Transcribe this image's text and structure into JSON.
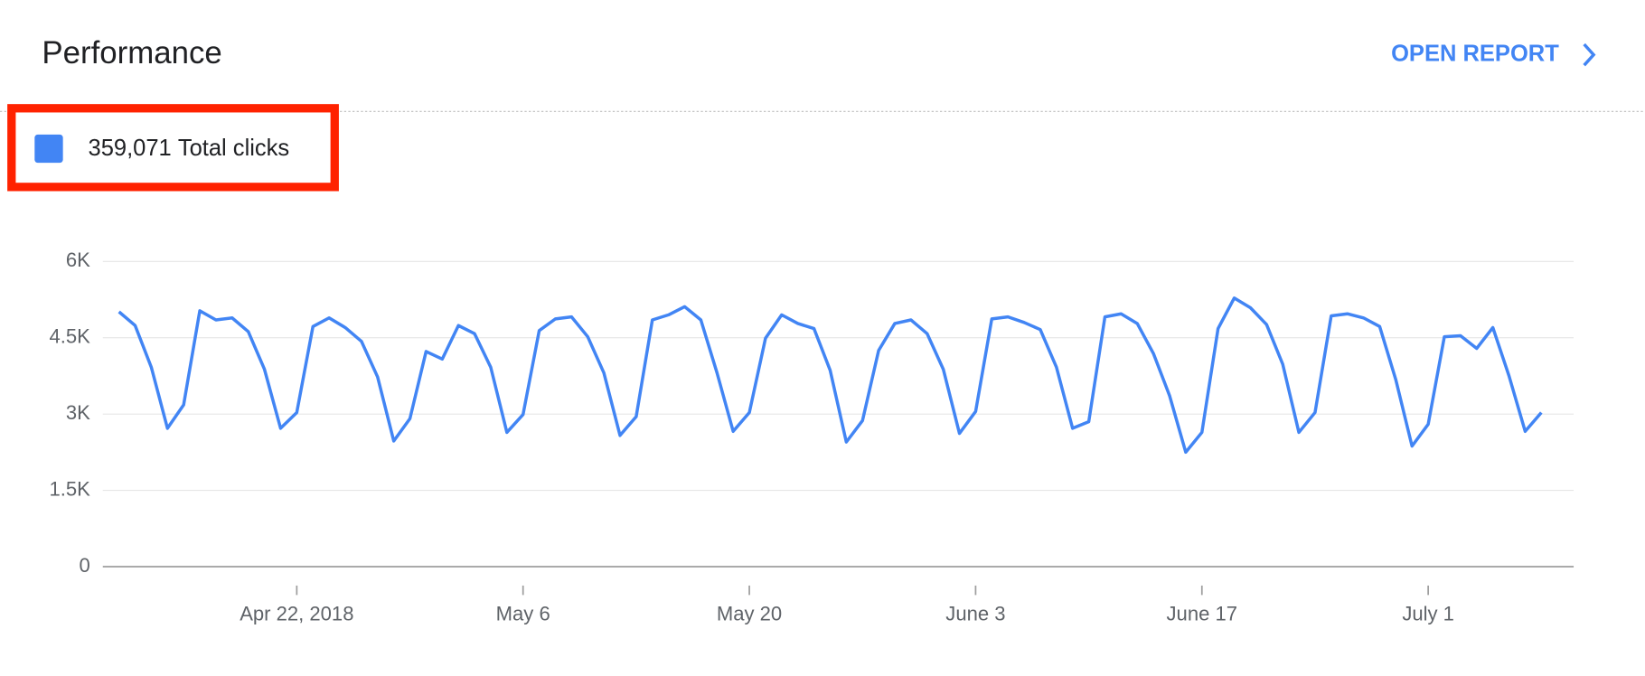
{
  "header": {
    "title": "Performance",
    "link": "OPEN REPORT"
  },
  "chart_data": {
    "type": "line",
    "legend_value": "359,071",
    "x": [
      "2018-04-11",
      "2018-04-12",
      "2018-04-13",
      "2018-04-14",
      "2018-04-15",
      "2018-04-16",
      "2018-04-17",
      "2018-04-18",
      "2018-04-19",
      "2018-04-20",
      "2018-04-21",
      "2018-04-22",
      "2018-04-23",
      "2018-04-24",
      "2018-04-25",
      "2018-04-26",
      "2018-04-27",
      "2018-04-28",
      "2018-04-29",
      "2018-04-30",
      "2018-05-01",
      "2018-05-02",
      "2018-05-03",
      "2018-05-04",
      "2018-05-05",
      "2018-05-06",
      "2018-05-07",
      "2018-05-08",
      "2018-05-09",
      "2018-05-10",
      "2018-05-11",
      "2018-05-12",
      "2018-05-13",
      "2018-05-14",
      "2018-05-15",
      "2018-05-16",
      "2018-05-17",
      "2018-05-18",
      "2018-05-19",
      "2018-05-20",
      "2018-05-21",
      "2018-05-22",
      "2018-05-23",
      "2018-05-24",
      "2018-05-25",
      "2018-05-26",
      "2018-05-27",
      "2018-05-28",
      "2018-05-29",
      "2018-05-30",
      "2018-05-31",
      "2018-06-01",
      "2018-06-02",
      "2018-06-03",
      "2018-06-04",
      "2018-06-05",
      "2018-06-06",
      "2018-06-07",
      "2018-06-08",
      "2018-06-09",
      "2018-06-10",
      "2018-06-11",
      "2018-06-12",
      "2018-06-13",
      "2018-06-14",
      "2018-06-15",
      "2018-06-16",
      "2018-06-17",
      "2018-06-18",
      "2018-06-19",
      "2018-06-20",
      "2018-06-21",
      "2018-06-22",
      "2018-06-23",
      "2018-06-24",
      "2018-06-25",
      "2018-06-26",
      "2018-06-27",
      "2018-06-28",
      "2018-06-29",
      "2018-06-30",
      "2018-07-01",
      "2018-07-02",
      "2018-07-03",
      "2018-07-04",
      "2018-07-05",
      "2018-07-06",
      "2018-07-07",
      "2018-07-08"
    ],
    "series": [
      {
        "name": "Total clicks",
        "color": "#4285f4",
        "values": [
          5010,
          4740,
          3920,
          2720,
          3180,
          5030,
          4850,
          4890,
          4620,
          3880,
          2720,
          3030,
          4720,
          4890,
          4700,
          4430,
          3730,
          2470,
          2910,
          4230,
          4080,
          4740,
          4580,
          3920,
          2640,
          2990,
          4640,
          4870,
          4910,
          4520,
          3810,
          2580,
          2950,
          4850,
          4950,
          5110,
          4850,
          3810,
          2660,
          3030,
          4490,
          4950,
          4780,
          4680,
          3860,
          2450,
          2870,
          4250,
          4780,
          4850,
          4580,
          3880,
          2620,
          3050,
          4870,
          4910,
          4800,
          4660,
          3920,
          2720,
          2850,
          4910,
          4970,
          4780,
          4190,
          3360,
          2250,
          2640,
          4680,
          5280,
          5090,
          4760,
          3980,
          2640,
          3030,
          4930,
          4970,
          4890,
          4720,
          3670,
          2370,
          2800,
          4520,
          4540,
          4290,
          4700,
          3750,
          2660,
          3030
        ]
      }
    ],
    "xlim": [
      "2018-04-10",
      "2018-07-10"
    ],
    "xticks": [
      {
        "value": "2018-04-22",
        "label": "Apr 22, 2018"
      },
      {
        "value": "2018-05-06",
        "label": "May 6"
      },
      {
        "value": "2018-05-20",
        "label": "May 20"
      },
      {
        "value": "2018-06-03",
        "label": "June 3"
      },
      {
        "value": "2018-06-17",
        "label": "June 17"
      },
      {
        "value": "2018-07-01",
        "label": "July 1"
      }
    ],
    "ylim": [
      0,
      6000
    ],
    "yticks": [
      0,
      {
        "value": 1500,
        "label": "1.5K"
      },
      {
        "value": 3000,
        "label": "3K"
      },
      {
        "value": 4500,
        "label": "4.5K"
      },
      {
        "value": 6000,
        "label": "6K"
      }
    ],
    "grid": true
  }
}
